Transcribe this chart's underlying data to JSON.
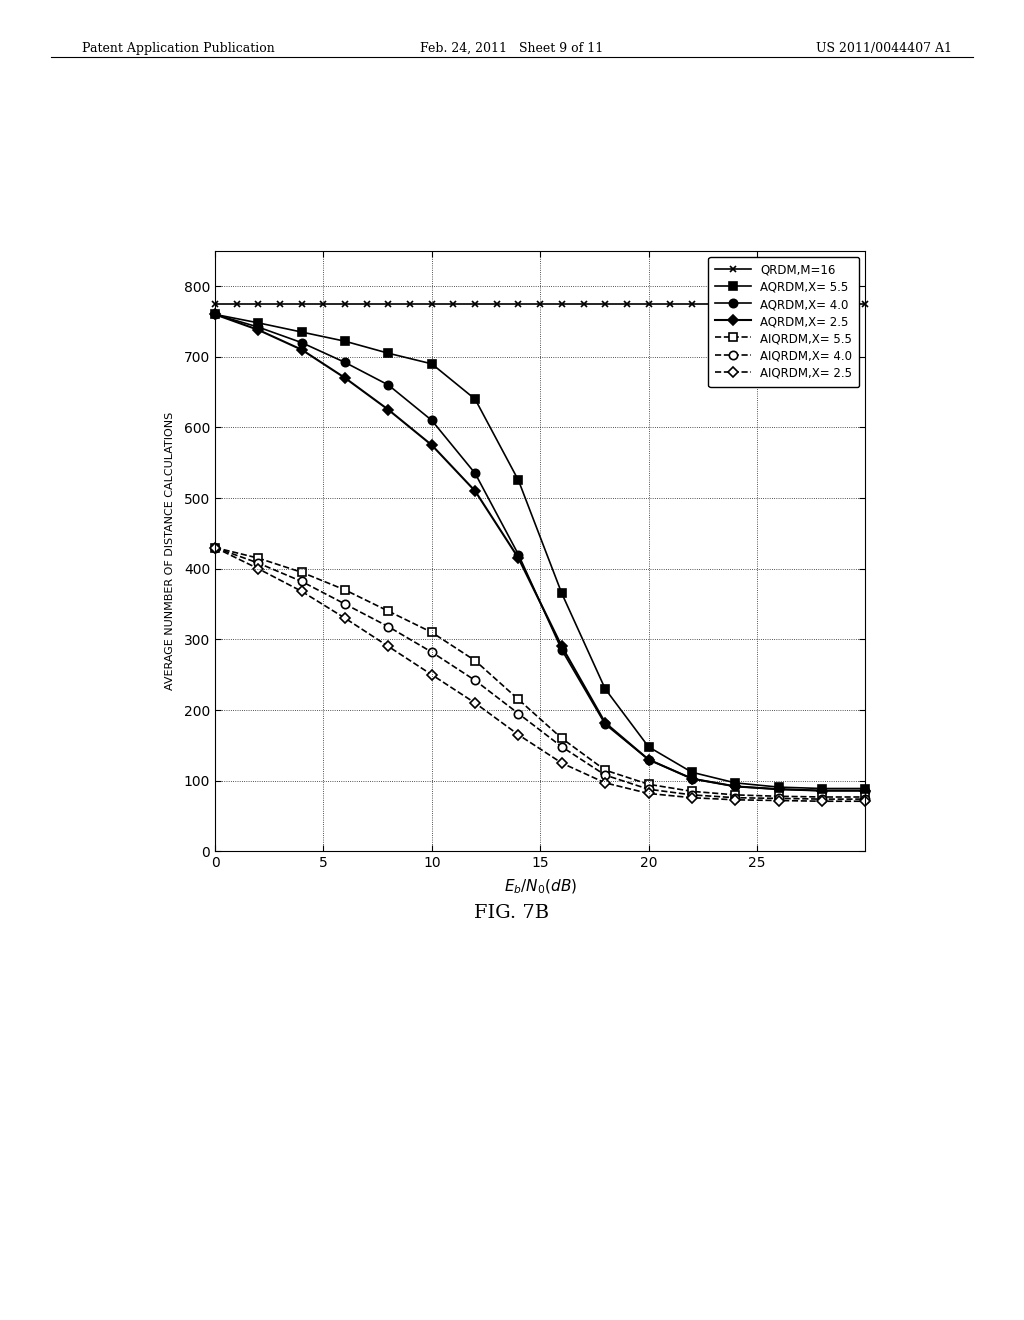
{
  "title": "FIG. 7B",
  "xlabel": "$E_b/N_0(dB)$",
  "ylabel": "AVERAGE NUNMBER OF DISTANCE CALCULATIONS",
  "xlim": [
    0,
    30
  ],
  "ylim": [
    0,
    850
  ],
  "xticks": [
    0,
    5,
    10,
    15,
    20,
    25
  ],
  "yticks": [
    0,
    100,
    200,
    300,
    400,
    500,
    600,
    700,
    800
  ],
  "header_left": "Patent Application Publication",
  "header_center": "Feb. 24, 2011   Sheet 9 of 11",
  "header_right": "US 2011/0044407 A1",
  "series": [
    {
      "label": "QRDM,M=16",
      "style": "solid",
      "marker": "x",
      "color": "black",
      "linewidth": 1.2,
      "markersize": 5,
      "data_x": [
        0,
        1,
        2,
        3,
        4,
        5,
        6,
        7,
        8,
        9,
        10,
        11,
        12,
        13,
        14,
        15,
        16,
        17,
        18,
        19,
        20,
        21,
        22,
        23,
        24,
        25,
        26,
        27,
        28,
        29,
        30
      ],
      "data_y": [
        775,
        775,
        775,
        775,
        775,
        775,
        775,
        775,
        775,
        775,
        775,
        775,
        775,
        775,
        775,
        775,
        775,
        775,
        775,
        775,
        775,
        775,
        775,
        775,
        775,
        775,
        775,
        775,
        775,
        775,
        775
      ],
      "fillstyle": "full"
    },
    {
      "label": "AQRDM,X= 5.5",
      "style": "solid",
      "marker": "s",
      "color": "black",
      "linewidth": 1.2,
      "markersize": 6,
      "data_x": [
        0,
        2,
        4,
        6,
        8,
        10,
        12,
        14,
        16,
        18,
        20,
        22,
        24,
        26,
        28,
        30
      ],
      "data_y": [
        760,
        748,
        735,
        722,
        705,
        690,
        640,
        525,
        365,
        230,
        148,
        112,
        97,
        91,
        89,
        89
      ],
      "fillstyle": "full"
    },
    {
      "label": "AQRDM,X= 4.0",
      "style": "solid",
      "marker": "o",
      "color": "black",
      "linewidth": 1.2,
      "markersize": 6,
      "data_x": [
        0,
        2,
        4,
        6,
        8,
        10,
        12,
        14,
        16,
        18,
        20,
        22,
        24,
        26,
        28,
        30
      ],
      "data_y": [
        760,
        742,
        720,
        692,
        660,
        610,
        535,
        420,
        285,
        180,
        130,
        103,
        92,
        88,
        86,
        86
      ],
      "fillstyle": "full"
    },
    {
      "label": "AQRDM,X= 2.5",
      "style": "solid",
      "marker": "D",
      "color": "black",
      "linewidth": 1.5,
      "markersize": 5,
      "data_x": [
        0,
        2,
        4,
        6,
        8,
        10,
        12,
        14,
        16,
        18,
        20,
        22,
        24,
        26,
        28,
        30
      ],
      "data_y": [
        760,
        738,
        710,
        670,
        625,
        575,
        510,
        415,
        290,
        182,
        130,
        103,
        92,
        88,
        86,
        86
      ],
      "fillstyle": "full"
    },
    {
      "label": "AIQRDM,X= 5.5",
      "style": "dashed",
      "marker": "s",
      "color": "black",
      "linewidth": 1.2,
      "markersize": 6,
      "data_x": [
        0,
        2,
        4,
        6,
        8,
        10,
        12,
        14,
        16,
        18,
        20,
        22,
        24,
        26,
        28,
        30
      ],
      "data_y": [
        430,
        415,
        395,
        370,
        340,
        310,
        270,
        215,
        160,
        115,
        95,
        85,
        80,
        78,
        77,
        77
      ],
      "fillstyle": "none"
    },
    {
      "label": "AIQRDM,X= 4.0",
      "style": "dashed",
      "marker": "o",
      "color": "black",
      "linewidth": 1.2,
      "markersize": 6,
      "data_x": [
        0,
        2,
        4,
        6,
        8,
        10,
        12,
        14,
        16,
        18,
        20,
        22,
        24,
        26,
        28,
        30
      ],
      "data_y": [
        430,
        408,
        382,
        350,
        318,
        282,
        242,
        195,
        148,
        108,
        88,
        80,
        76,
        75,
        74,
        74
      ],
      "fillstyle": "none"
    },
    {
      "label": "AIQRDM,X= 2.5",
      "style": "dashed",
      "marker": "D",
      "color": "black",
      "linewidth": 1.2,
      "markersize": 5,
      "data_x": [
        0,
        2,
        4,
        6,
        8,
        10,
        12,
        14,
        16,
        18,
        20,
        22,
        24,
        26,
        28,
        30
      ],
      "data_y": [
        430,
        400,
        368,
        330,
        290,
        250,
        210,
        165,
        125,
        97,
        82,
        76,
        73,
        72,
        71,
        71
      ],
      "fillstyle": "none"
    }
  ]
}
